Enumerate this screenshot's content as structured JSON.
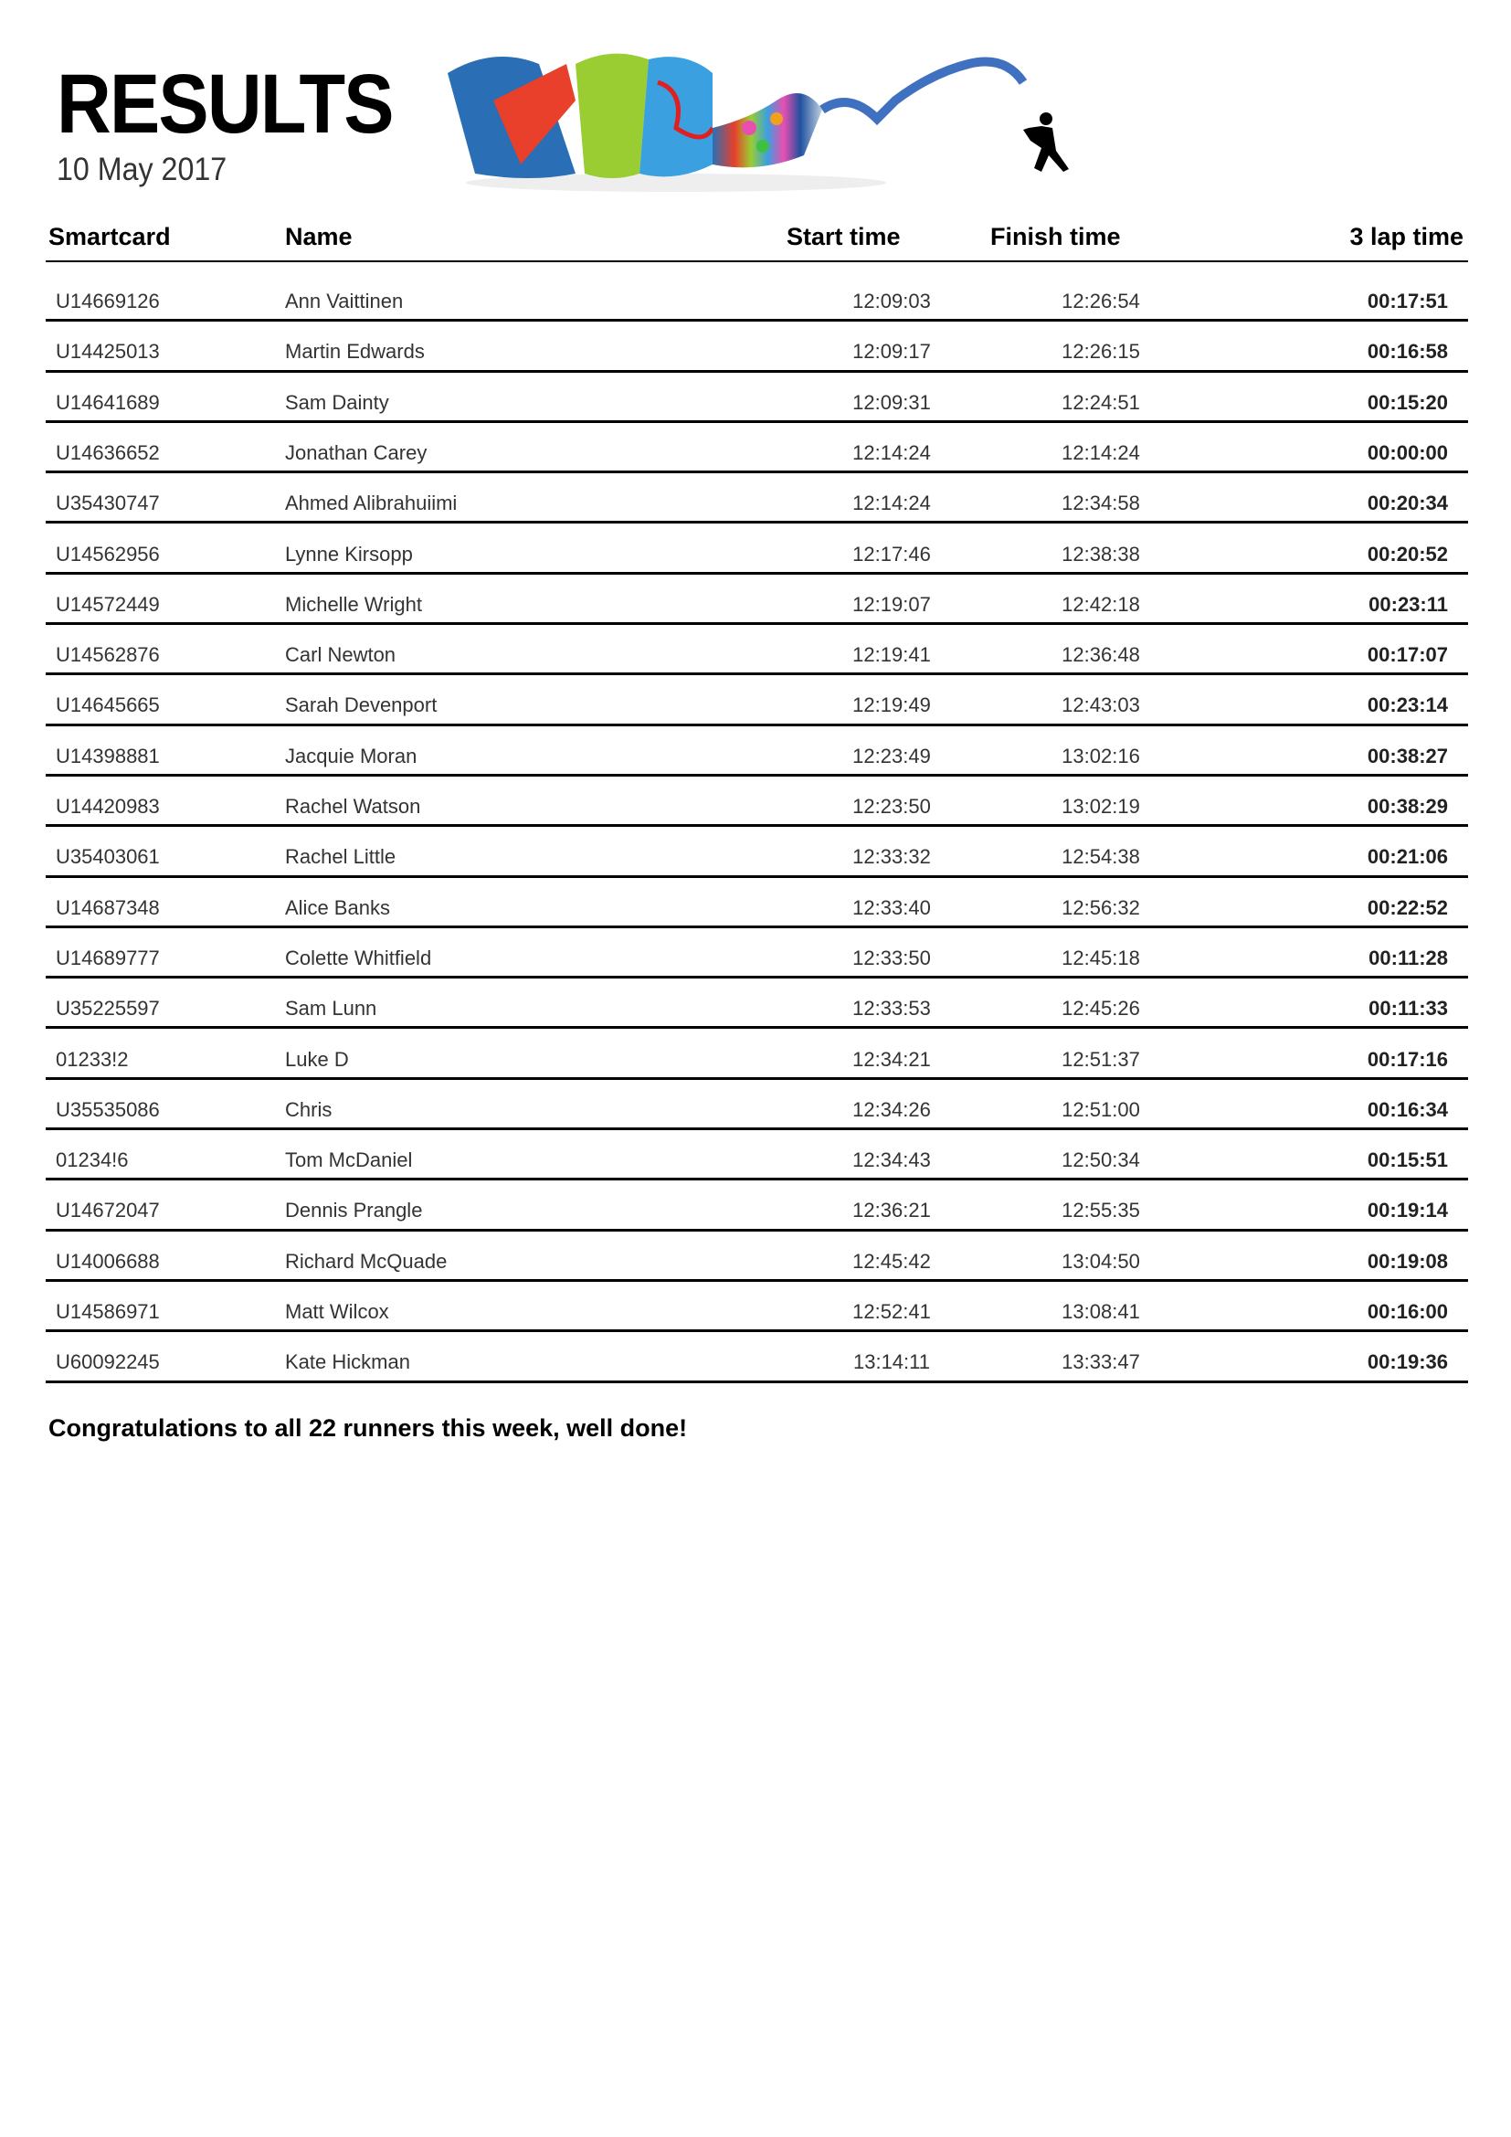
{
  "header": {
    "title": "RESULTS",
    "date": "10 May 2017"
  },
  "table": {
    "columns": [
      "Smartcard",
      "Name",
      "Start time",
      "Finish time",
      "3 lap time"
    ],
    "rows": [
      [
        "U14669126",
        "Ann Vaittinen",
        "12:09:03",
        "12:26:54",
        "00:17:51"
      ],
      [
        "U14425013",
        "Martin Edwards",
        "12:09:17",
        "12:26:15",
        "00:16:58"
      ],
      [
        "U14641689",
        "Sam Dainty",
        "12:09:31",
        "12:24:51",
        "00:15:20"
      ],
      [
        "U14636652",
        "Jonathan Carey",
        "12:14:24",
        "12:14:24",
        "00:00:00"
      ],
      [
        "U35430747",
        "Ahmed Alibrahuiimi",
        "12:14:24",
        "12:34:58",
        "00:20:34"
      ],
      [
        "U14562956",
        "Lynne Kirsopp",
        "12:17:46",
        "12:38:38",
        "00:20:52"
      ],
      [
        "U14572449",
        "Michelle Wright",
        "12:19:07",
        "12:42:18",
        "00:23:11"
      ],
      [
        "U14562876",
        "Carl Newton",
        "12:19:41",
        "12:36:48",
        "00:17:07"
      ],
      [
        "U14645665",
        "Sarah Devenport",
        "12:19:49",
        "12:43:03",
        "00:23:14"
      ],
      [
        "U14398881",
        "Jacquie Moran",
        "12:23:49",
        "13:02:16",
        "00:38:27"
      ],
      [
        "U14420983",
        "Rachel Watson",
        "12:23:50",
        "13:02:19",
        "00:38:29"
      ],
      [
        "U35403061",
        "Rachel Little",
        "12:33:32",
        "12:54:38",
        "00:21:06"
      ],
      [
        "U14687348",
        "Alice Banks",
        "12:33:40",
        "12:56:32",
        "00:22:52"
      ],
      [
        "U14689777",
        "Colette Whitfield",
        "12:33:50",
        "12:45:18",
        "00:11:28"
      ],
      [
        "U35225597",
        "Sam Lunn",
        "12:33:53",
        "12:45:26",
        "00:11:33"
      ],
      [
        "01233!2",
        "Luke D",
        "12:34:21",
        "12:51:37",
        "00:17:16"
      ],
      [
        "U35535086",
        "Chris",
        "12:34:26",
        "12:51:00",
        "00:16:34"
      ],
      [
        "01234!6",
        "Tom McDaniel",
        "12:34:43",
        "12:50:34",
        "00:15:51"
      ],
      [
        "U14672047",
        "Dennis Prangle",
        "12:36:21",
        "12:55:35",
        "00:19:14"
      ],
      [
        "U14006688",
        "Richard McQuade",
        "12:45:42",
        "13:04:50",
        "00:19:08"
      ],
      [
        "U14586971",
        "Matt Wilcox",
        "12:52:41",
        "13:08:41",
        "00:16:00"
      ],
      [
        "U60092245",
        "Kate Hickman",
        "13:14:11",
        "13:33:47",
        "00:19:36"
      ]
    ]
  },
  "footer": {
    "message": "Congratulations to all 22 runners this week, well done!"
  },
  "banner": {
    "icon": "map-ribbon-runner-image"
  }
}
